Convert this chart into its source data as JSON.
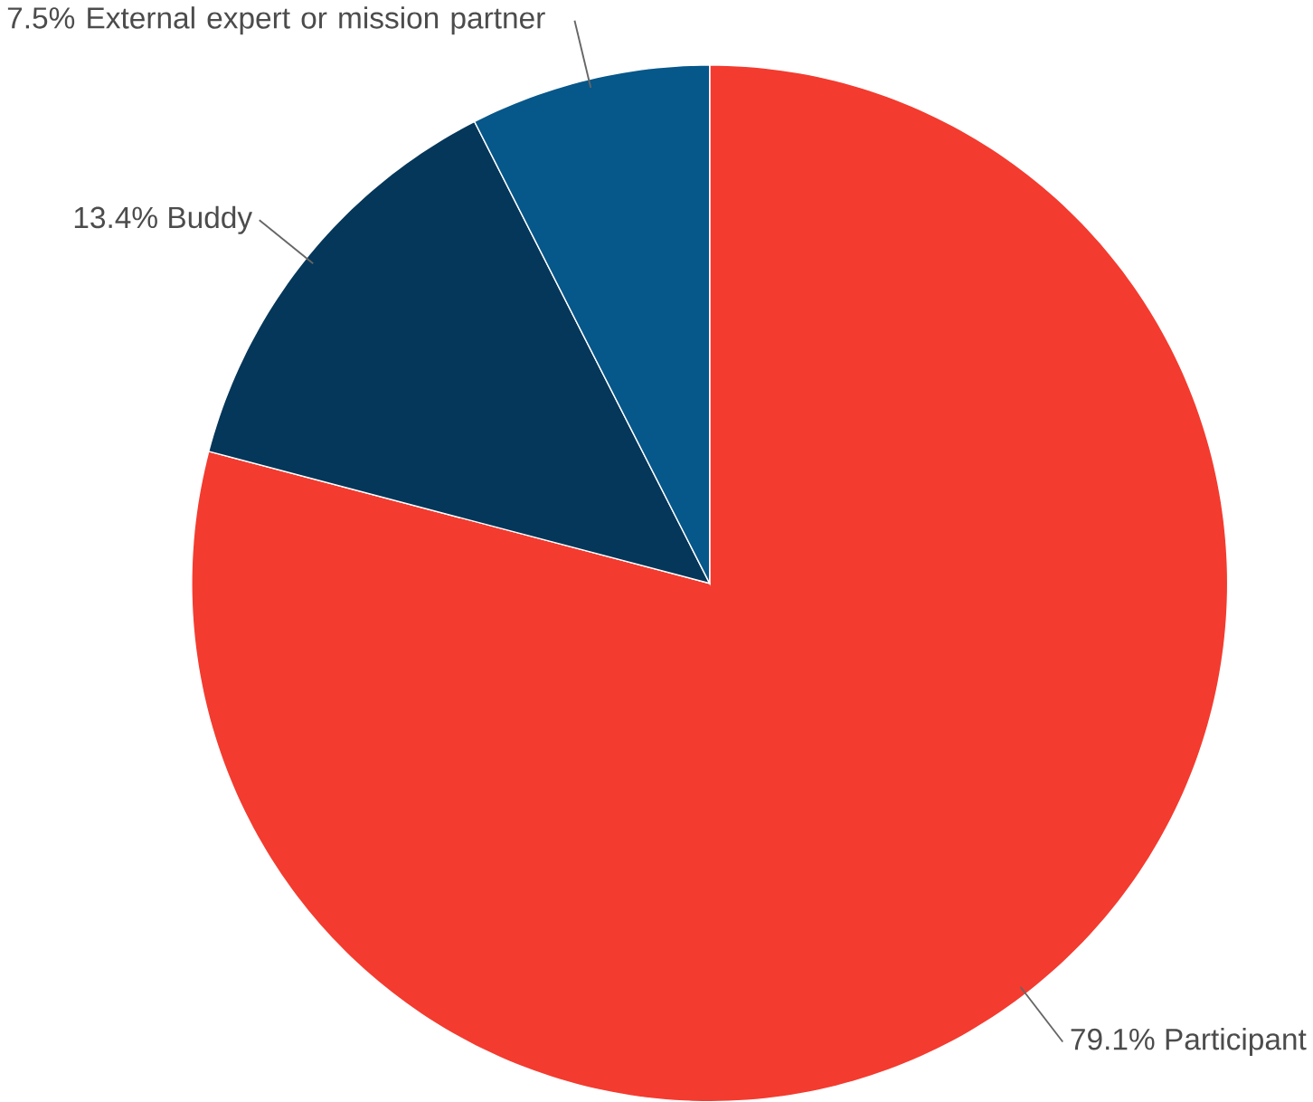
{
  "chart_data": {
    "type": "pie",
    "categories": [
      "Participant",
      "Buddy",
      "External expert or mission partner"
    ],
    "values": [
      79.1,
      13.4,
      7.5
    ],
    "value_labels": [
      "79.1%",
      "13.4%",
      "7.5%"
    ],
    "colors": [
      "#f43b2f",
      "#04375a",
      "#06578a"
    ]
  }
}
